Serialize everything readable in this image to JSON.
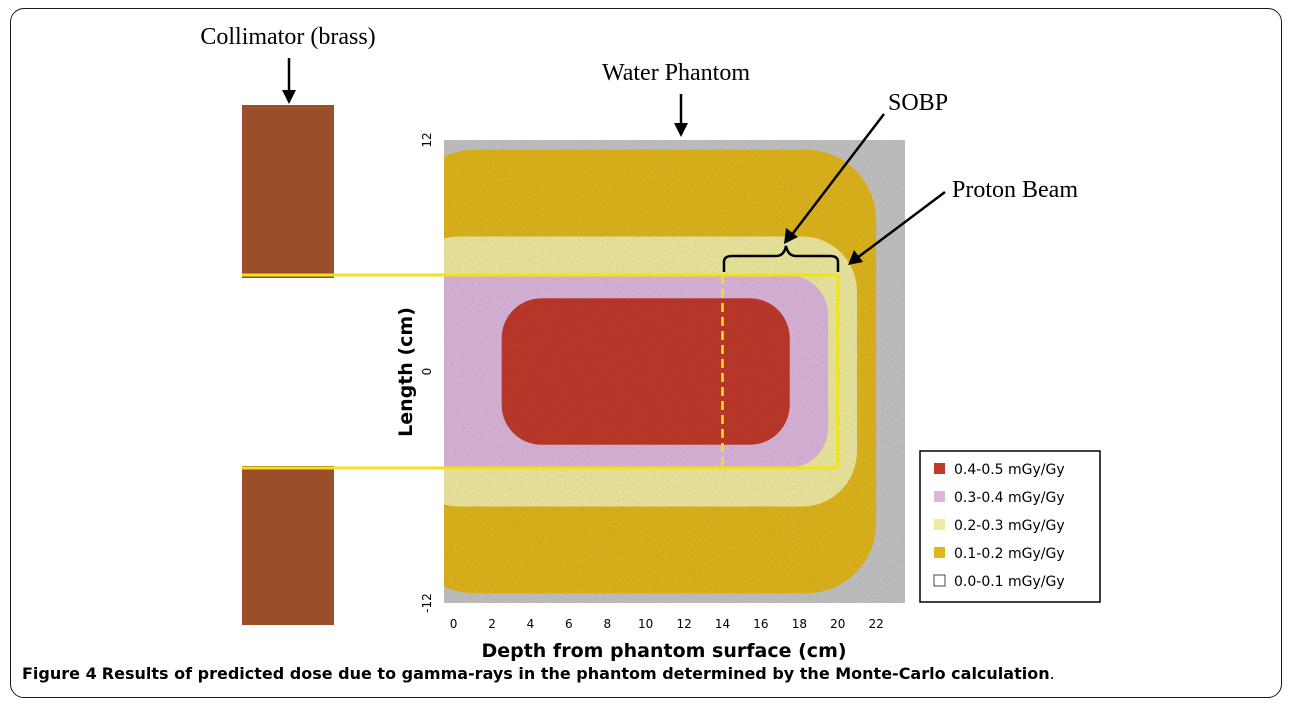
{
  "figure": {
    "caption_label": "Figure 4",
    "caption_title": "Results of predicted dose due to gamma-rays in the phantom determined by the Monte-Carlo calculation",
    "caption_end": "."
  },
  "annotations": {
    "collimator": "Collimator (brass)",
    "water_phantom": "Water Phantom",
    "sobp": "SOBP",
    "proton_beam": "Proton Beam"
  },
  "colors": {
    "collimator": "#9a4f2a",
    "beam_outline": "#f2e21c",
    "band_high": "#c0392b",
    "band_mid": "#dcb6dc",
    "band_low": "#eeeaa0",
    "band_lower": "#e0b61c",
    "band_min": "#c4c4c4"
  },
  "chart_data": {
    "type": "heatmap",
    "xlabel": "Depth from phantom surface (cm)",
    "ylabel": "Length (cm)",
    "xlim": [
      -0.5,
      23.5
    ],
    "ylim": [
      -12,
      12
    ],
    "x_ticks": [
      0,
      2,
      4,
      6,
      8,
      10,
      12,
      14,
      16,
      18,
      20,
      22
    ],
    "y_ticks": [
      12,
      0,
      -12
    ],
    "beam_y_range": [
      -5,
      5
    ],
    "beam_x_end": 20,
    "sobp_x_range": [
      14,
      20
    ],
    "legend": [
      {
        "label": "0.4-0.5 mGy/Gy",
        "color": "#c0392b"
      },
      {
        "label": "0.3-0.4 mGy/Gy",
        "color": "#dcb6dc"
      },
      {
        "label": "0.2-0.3 mGy/Gy",
        "color": "#eeeaa0"
      },
      {
        "label": "0.1-0.2 mGy/Gy",
        "color": "#e0b61c"
      },
      {
        "label": "0.0-0.1 mGy/Gy",
        "color": "#ffffff"
      }
    ],
    "regions": [
      {
        "label": "0.1-0.2 mGy/Gy",
        "x": [
          -0.5,
          22.0
        ],
        "y": [
          -11.5,
          11.5
        ]
      },
      {
        "label": "0.2-0.3 mGy/Gy",
        "x": [
          -0.5,
          21.0
        ],
        "y": [
          -7.0,
          7.0
        ]
      },
      {
        "label": "0.3-0.4 mGy/Gy",
        "x": [
          -0.5,
          19.5
        ],
        "y": [
          -5.0,
          5.0
        ]
      },
      {
        "label": "0.4-0.5 mGy/Gy",
        "x": [
          2.5,
          17.5
        ],
        "y": [
          -3.8,
          3.8
        ]
      }
    ]
  }
}
